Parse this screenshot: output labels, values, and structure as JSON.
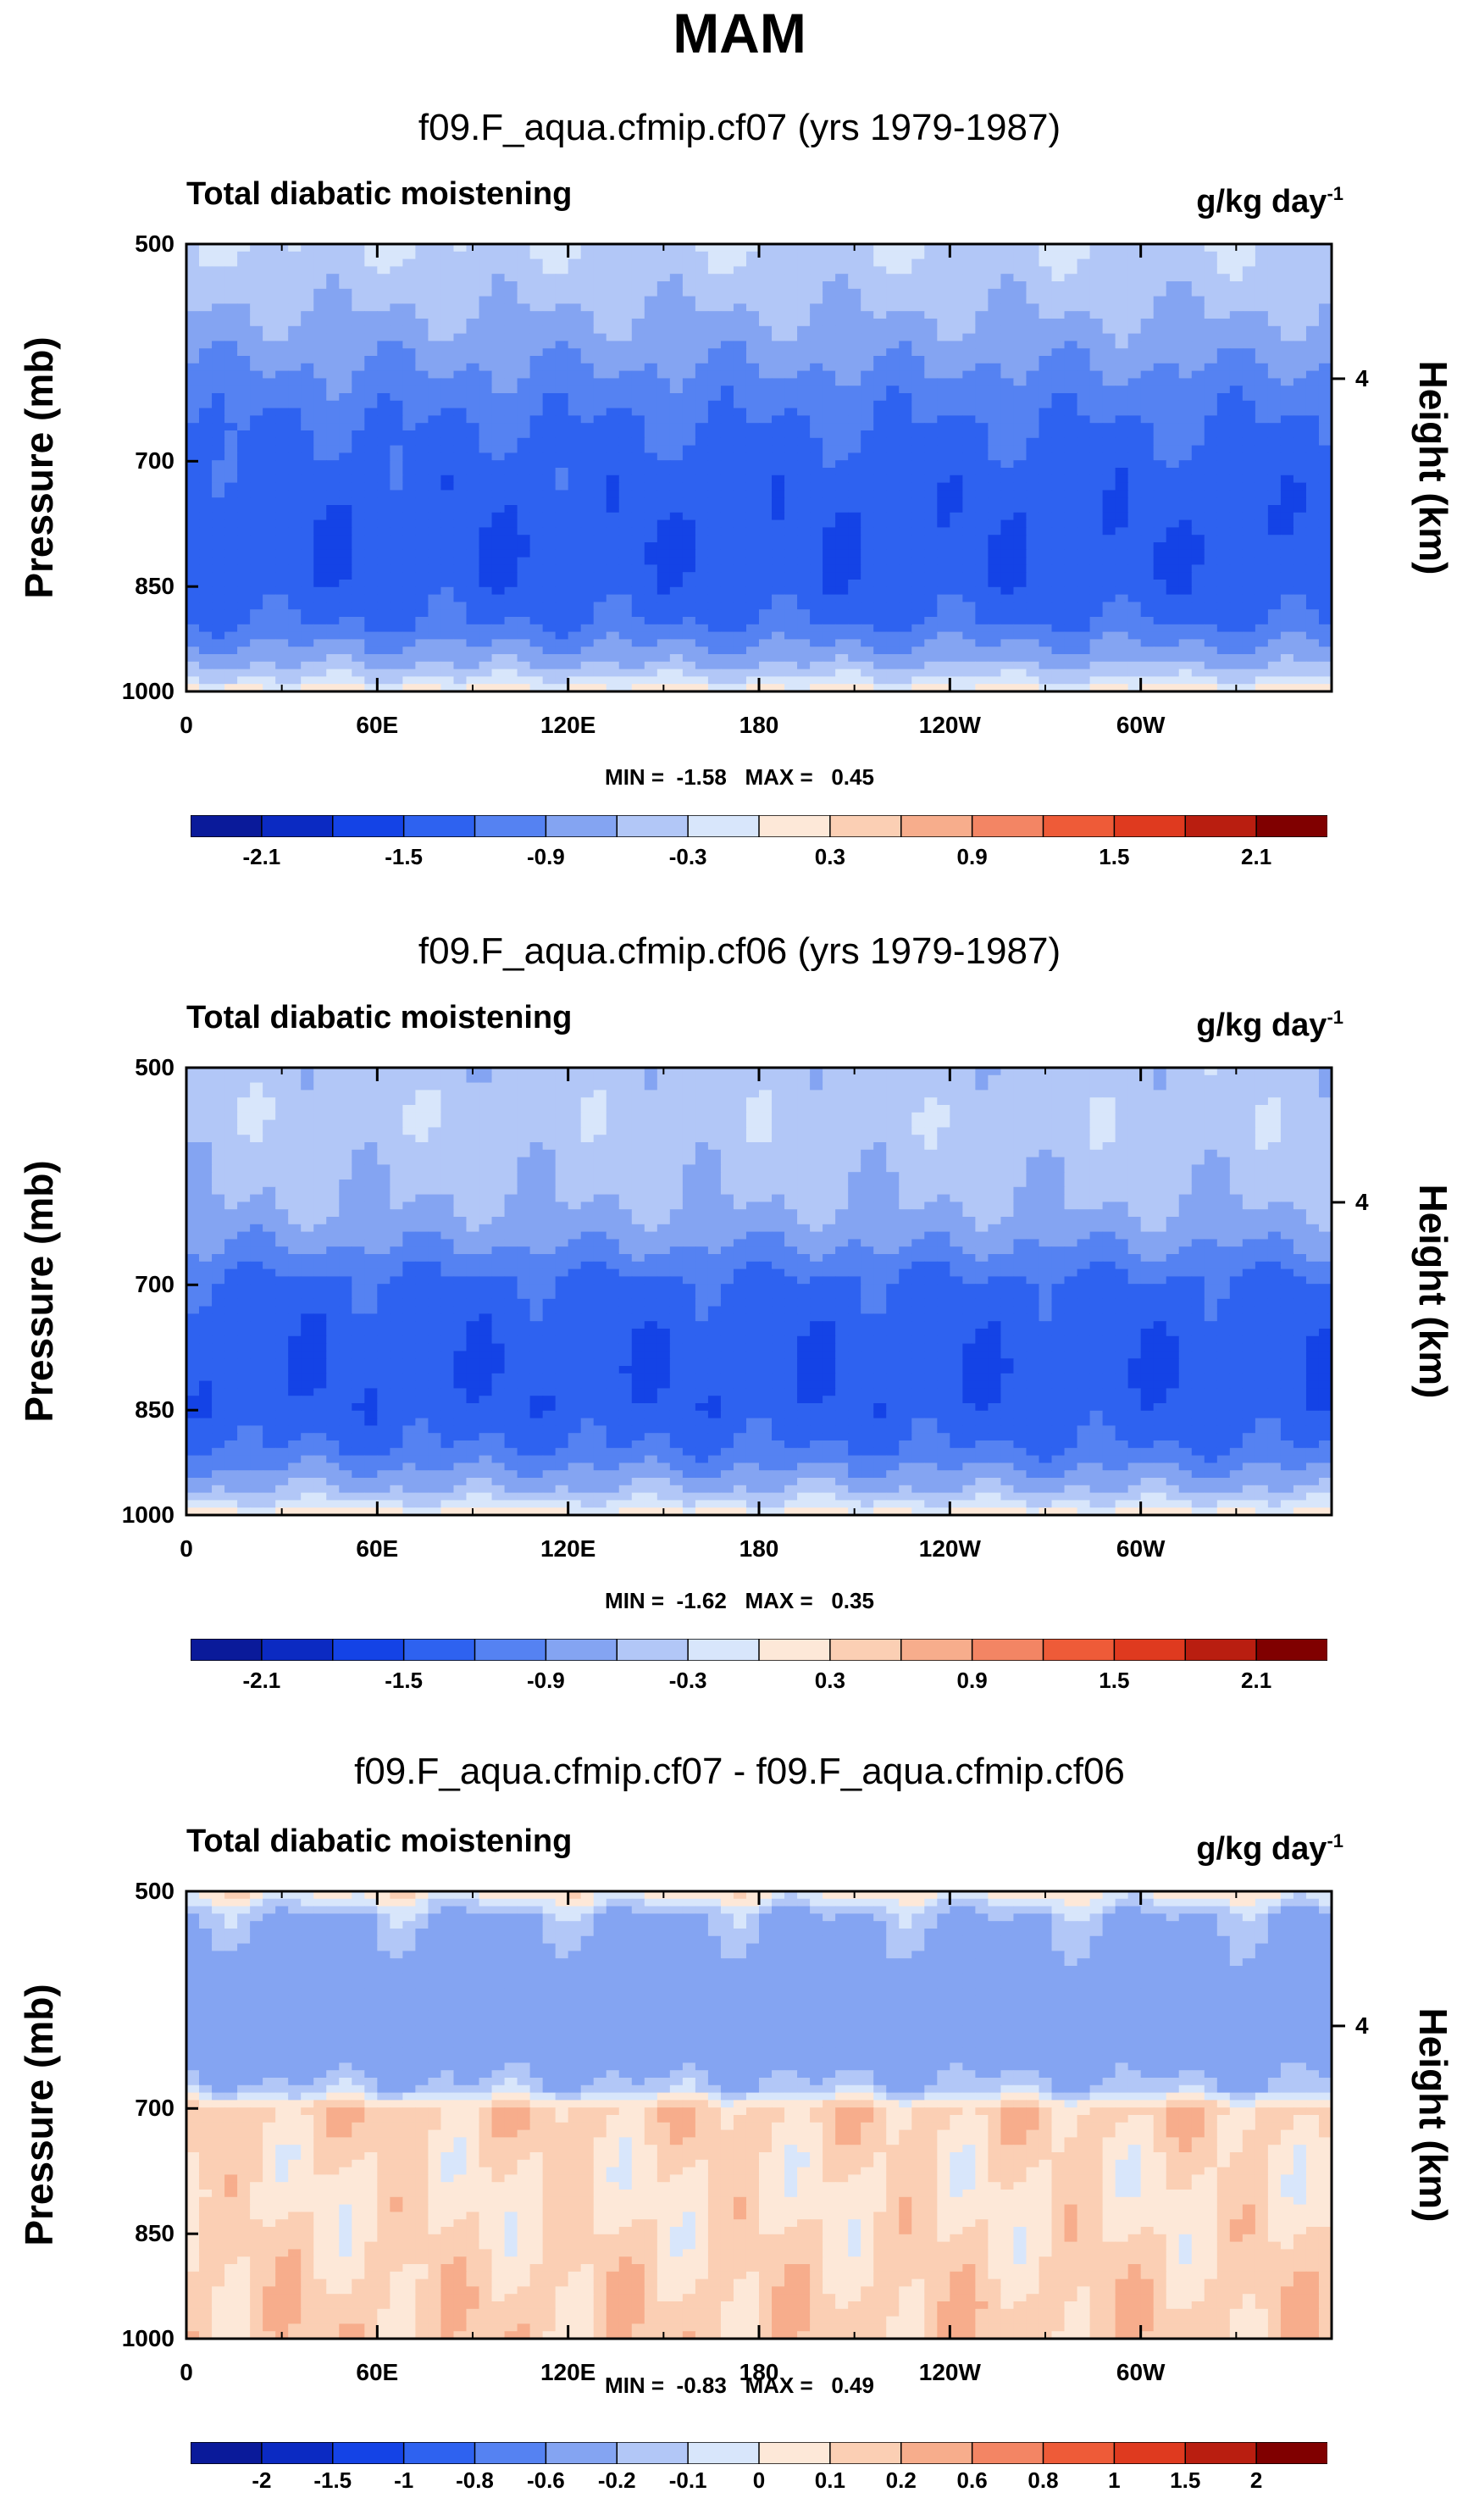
{
  "page_title": "MAM",
  "colors": {
    "blues": [
      "#0a1a9a",
      "#0b2ac2",
      "#1443e6",
      "#2e62f0",
      "#5582f2",
      "#84a4f2",
      "#b2c7f7",
      "#d8e6fb"
    ],
    "reds": [
      "#fde8d8",
      "#fbcfb4",
      "#f7ad8c",
      "#f38564",
      "#ee5b38",
      "#df3a1f",
      "#b91e10",
      "#800000"
    ]
  },
  "chart_data": [
    {
      "type": "heatmap",
      "title": "f09.F_aqua.cfmip.cf07 (yrs 1979-1987)",
      "left_label": "Total diabatic moistening",
      "units": "g/kg day",
      "units_exponent": "-1",
      "ylabel": "Pressure (mb)",
      "ylabel_right": "Height (km)",
      "yticks": [
        "500",
        "700",
        "850",
        "1000"
      ],
      "yticks_right": [
        "4"
      ],
      "xticks": [
        "0",
        "60E",
        "120E",
        "180",
        "120W",
        "60W"
      ],
      "min_max_text": "MIN =  -1.58   MAX =   0.45",
      "min": -1.58,
      "max": 0.45,
      "colorbar_labels": [
        "-2.1",
        "-1.5",
        "-0.9",
        "-0.3",
        "0.3",
        "0.9",
        "1.5",
        "2.1"
      ],
      "pressure_profile": [
        {
          "p": 500,
          "v": -0.3
        },
        {
          "p": 540,
          "v": -0.5
        },
        {
          "p": 580,
          "v": -0.75
        },
        {
          "p": 620,
          "v": -1.0
        },
        {
          "p": 660,
          "v": -1.2
        },
        {
          "p": 700,
          "v": -1.3
        },
        {
          "p": 750,
          "v": -1.4
        },
        {
          "p": 800,
          "v": -1.45
        },
        {
          "p": 850,
          "v": -1.4
        },
        {
          "p": 900,
          "v": -1.2
        },
        {
          "p": 930,
          "v": -0.9
        },
        {
          "p": 960,
          "v": -0.6
        },
        {
          "p": 985,
          "v": -0.2
        },
        {
          "p": 1000,
          "v": 0.2
        }
      ]
    },
    {
      "type": "heatmap",
      "title": "f09.F_aqua.cfmip.cf06 (yrs 1979-1987)",
      "left_label": "Total diabatic moistening",
      "units": "g/kg day",
      "units_exponent": "-1",
      "ylabel": "Pressure (mb)",
      "ylabel_right": "Height (km)",
      "yticks": [
        "500",
        "700",
        "850",
        "1000"
      ],
      "yticks_right": [
        "4"
      ],
      "xticks": [
        "0",
        "60E",
        "120E",
        "180",
        "120W",
        "60W"
      ],
      "min_max_text": "MIN =  -1.62   MAX =   0.35",
      "min": -1.62,
      "max": 0.35,
      "colorbar_labels": [
        "-2.1",
        "-1.5",
        "-0.9",
        "-0.3",
        "0.3",
        "0.9",
        "1.5",
        "2.1"
      ],
      "pressure_profile": [
        {
          "p": 500,
          "v": -0.45
        },
        {
          "p": 540,
          "v": -0.4
        },
        {
          "p": 580,
          "v": -0.5
        },
        {
          "p": 620,
          "v": -0.6
        },
        {
          "p": 660,
          "v": -0.9
        },
        {
          "p": 700,
          "v": -1.3
        },
        {
          "p": 750,
          "v": -1.4
        },
        {
          "p": 800,
          "v": -1.45
        },
        {
          "p": 850,
          "v": -1.4
        },
        {
          "p": 900,
          "v": -1.2
        },
        {
          "p": 930,
          "v": -0.9
        },
        {
          "p": 960,
          "v": -0.6
        },
        {
          "p": 985,
          "v": -0.2
        },
        {
          "p": 1000,
          "v": 0.2
        }
      ]
    },
    {
      "type": "heatmap",
      "title": "f09.F_aqua.cfmip.cf07 - f09.F_aqua.cfmip.cf06",
      "left_label": "Total diabatic moistening",
      "units": "g/kg day",
      "units_exponent": "-1",
      "ylabel": "Pressure (mb)",
      "ylabel_right": "Height (km)",
      "yticks": [
        "500",
        "700",
        "850",
        "1000"
      ],
      "yticks_right": [
        "4"
      ],
      "xticks": [
        "0",
        "60E",
        "120E",
        "180",
        "120W",
        "60W"
      ],
      "min_max_text": "MIN =  -0.83   MAX =   0.49",
      "min": -0.83,
      "max": 0.49,
      "colorbar_labels": [
        "-2",
        "-1.5",
        "-1",
        "-0.8",
        "-0.6",
        "-0.2",
        "-0.1",
        "0",
        "0.1",
        "0.2",
        "0.6",
        "0.8",
        "1",
        "1.5",
        "2"
      ],
      "pressure_profile": [
        {
          "p": 500,
          "v": 0.05
        },
        {
          "p": 520,
          "v": -0.2
        },
        {
          "p": 560,
          "v": -0.3
        },
        {
          "p": 600,
          "v": -0.4
        },
        {
          "p": 640,
          "v": -0.35
        },
        {
          "p": 680,
          "v": -0.15
        },
        {
          "p": 700,
          "v": 0.15
        },
        {
          "p": 750,
          "v": 0.1
        },
        {
          "p": 800,
          "v": 0.08
        },
        {
          "p": 850,
          "v": 0.1
        },
        {
          "p": 900,
          "v": 0.12
        },
        {
          "p": 950,
          "v": 0.15
        },
        {
          "p": 1000,
          "v": 0.15
        }
      ]
    }
  ]
}
